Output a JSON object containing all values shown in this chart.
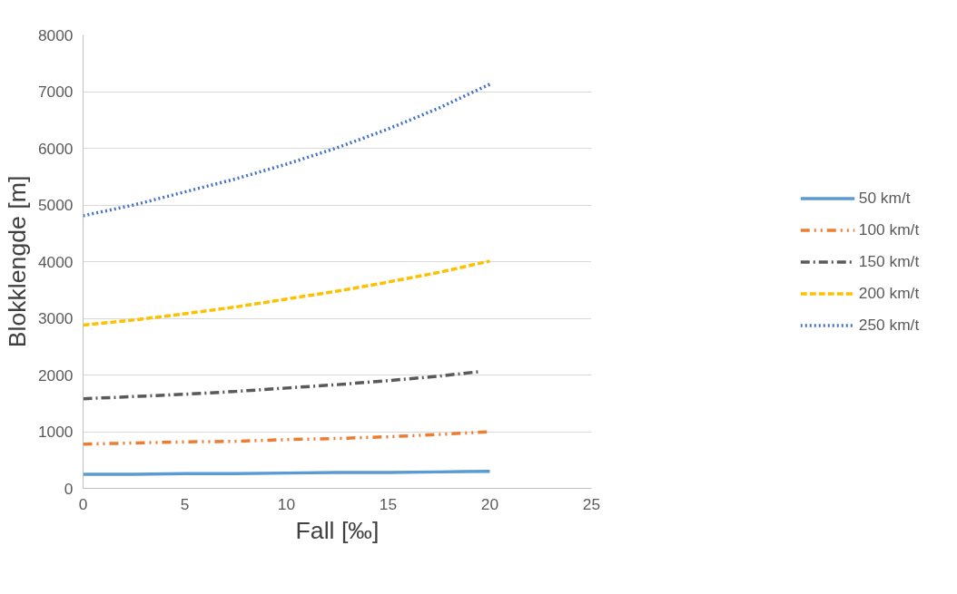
{
  "chart_data": {
    "type": "line",
    "xlabel": "Fall [‰]",
    "ylabel": "Blokklengde [m]",
    "x": [
      0,
      2.5,
      5,
      7.5,
      10,
      12.5,
      15,
      17.5,
      20
    ],
    "series": [
      {
        "name": "50 km/t",
        "color": "#5b9bd5",
        "line_style": "solid",
        "values": [
          250,
          250,
          260,
          260,
          270,
          280,
          280,
          290,
          300
        ]
      },
      {
        "name": "100 km/t",
        "color": "#ed7d31",
        "line_style": "dashdotdot",
        "values": [
          780,
          800,
          820,
          830,
          860,
          880,
          910,
          950,
          1000
        ]
      },
      {
        "name": "150 km/t",
        "color": "#595959",
        "line_style": "dashdot",
        "x": [
          0,
          2.5,
          5,
          7.5,
          10,
          12.5,
          15,
          17.5,
          19.5
        ],
        "values": [
          1580,
          1620,
          1660,
          1710,
          1770,
          1830,
          1900,
          1980,
          2060
        ]
      },
      {
        "name": "200 km/t",
        "color": "#ffc000",
        "line_style": "dashed",
        "values": [
          2880,
          2970,
          3080,
          3200,
          3340,
          3480,
          3640,
          3810,
          4010
        ]
      },
      {
        "name": "250 km/t",
        "color": "#4472c4",
        "line_style": "dotted",
        "values": [
          4810,
          5000,
          5230,
          5460,
          5720,
          6010,
          6340,
          6710,
          7130
        ]
      }
    ],
    "xlim": [
      0,
      25
    ],
    "xticks": [
      0,
      5,
      10,
      15,
      20,
      25
    ],
    "ylim": [
      0,
      8000
    ],
    "yticks": [
      0,
      1000,
      2000,
      3000,
      4000,
      5000,
      6000,
      7000,
      8000
    ],
    "grid": "y",
    "legend": "right",
    "marker": "none"
  }
}
